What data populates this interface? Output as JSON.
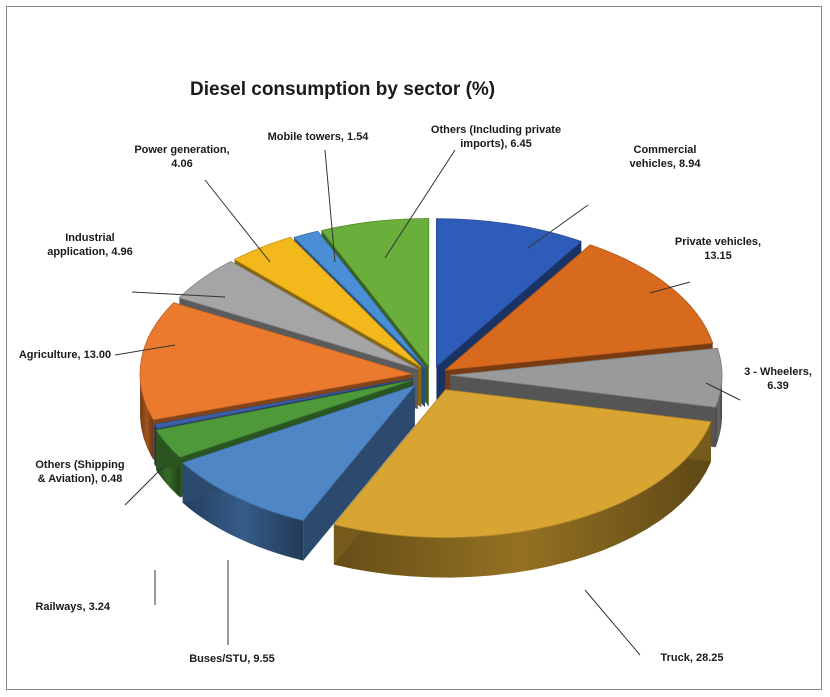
{
  "chart_data": {
    "type": "pie",
    "title": "Diesel consumption by sector  (%)",
    "style": "3d-exploded",
    "slices": [
      {
        "name": "Commercial vehicles",
        "value": 8.94,
        "label_lines": [
          "Commercial",
          "vehicles, 8.94"
        ],
        "color": "#2E5CB8"
      },
      {
        "name": "Private vehicles",
        "value": 13.15,
        "label_lines": [
          "Private  vehicles,",
          "13.15"
        ],
        "color": "#D86A1E"
      },
      {
        "name": "3 - Wheelers",
        "value": 6.39,
        "label_lines": [
          "3 - Wheelers,",
          "6.39"
        ],
        "color": "#9A9A9A"
      },
      {
        "name": "Truck",
        "value": 28.25,
        "label_lines": [
          "Truck, 28.25"
        ],
        "color": "#D9A532"
      },
      {
        "name": "Buses/STU",
        "value": 9.55,
        "label_lines": [
          "Buses/STU, 9.55"
        ],
        "color": "#4F86C6"
      },
      {
        "name": "Railways",
        "value": 3.24,
        "label_lines": [
          "Railways, 3.24"
        ],
        "color": "#4E9A3A"
      },
      {
        "name": "Others (Shipping & Aviation)",
        "value": 0.48,
        "label_lines": [
          "Others (Shipping",
          "& Aviation), 0.48"
        ],
        "color": "#3E5FA8"
      },
      {
        "name": "Agriculture",
        "value": 13.0,
        "label_lines": [
          "Agriculture, 13.00"
        ],
        "color": "#EC7A2E"
      },
      {
        "name": "Industrial application",
        "value": 4.96,
        "label_lines": [
          "Industrial",
          "application, 4.96"
        ],
        "color": "#A5A5A5"
      },
      {
        "name": "Power generation",
        "value": 4.06,
        "label_lines": [
          "Power generation,",
          "4.06"
        ],
        "color": "#F2B81C"
      },
      {
        "name": "Mobile towers",
        "value": 1.54,
        "label_lines": [
          "Mobile towers, 1.54"
        ],
        "color": "#4A8FD6"
      },
      {
        "name": "Others (Including private imports)",
        "value": 6.45,
        "label_lines": [
          "Others (Including private",
          "imports), 6.45"
        ],
        "color": "#6AAE3C"
      }
    ]
  }
}
